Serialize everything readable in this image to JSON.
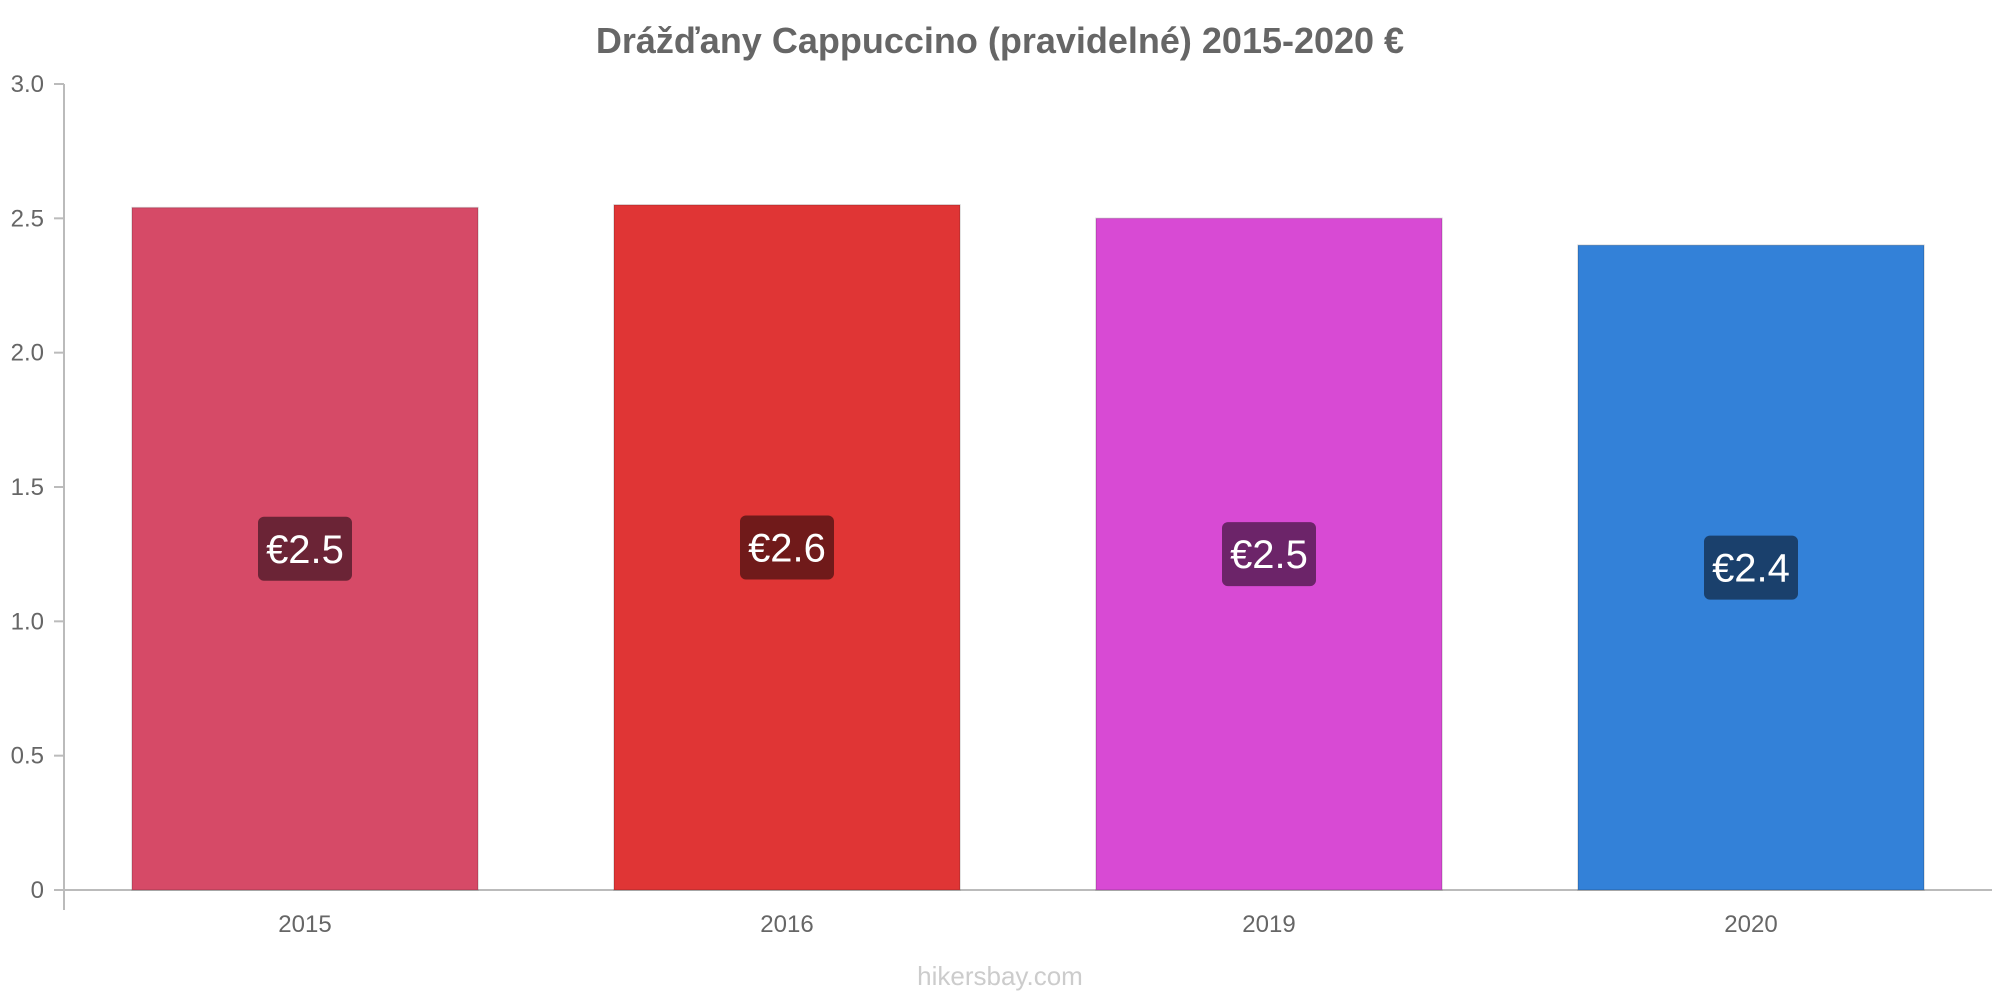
{
  "chart_data": {
    "type": "bar",
    "title": "Drážďany Cappuccino (pravidelné) 2015-2020 €",
    "xlabel": "",
    "ylabel": "",
    "categories": [
      "2015",
      "2016",
      "2019",
      "2020"
    ],
    "values": [
      2.54,
      2.55,
      2.5,
      2.4
    ],
    "data_labels": [
      "€2.5",
      "€2.6",
      "€2.5",
      "€2.4"
    ],
    "bar_colors": [
      "#d64a67",
      "#e03535",
      "#d84ad4",
      "#3381d8"
    ],
    "label_box_colors": [
      "#6b2436",
      "#701a1a",
      "#6c2469",
      "#1a406c"
    ],
    "ylim": [
      0,
      3.0
    ],
    "yticks": [
      0,
      0.5,
      1.0,
      1.5,
      2.0,
      2.5,
      3.0
    ],
    "ytick_labels": [
      "0",
      "0.5",
      "1.0",
      "1.5",
      "2.0",
      "2.5",
      "3.0"
    ],
    "grid": false,
    "legend": "none"
  },
  "watermark": "hikersbay.com"
}
